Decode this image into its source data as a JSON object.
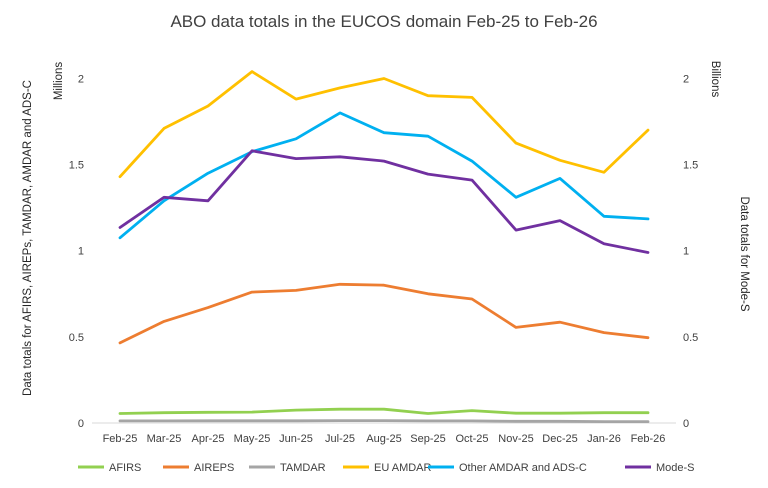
{
  "chart_data": {
    "type": "line",
    "title": "ABO data totals in the EUCOS domain Feb-25 to Feb-26",
    "categories": [
      "Feb-25",
      "Mar-25",
      "Apr-25",
      "May-25",
      "Jun-25",
      "Jul-25",
      "Aug-25",
      "Sep-25",
      "Oct-25",
      "Nov-25",
      "Dec-25",
      "Jan-26",
      "Feb-26"
    ],
    "y_left": {
      "label": "Data totals for AFIRS, AIREPs, TAMDAR, AMDAR and ADS-C",
      "unit": "Millions",
      "range": [
        0,
        2.2
      ],
      "ticks": [
        0,
        0.5,
        1,
        1.5,
        2
      ],
      "tick_labels": [
        "0",
        "0.5",
        "1",
        "1.5",
        "2"
      ]
    },
    "y_right": {
      "label": "Data totals for Mode-S",
      "unit": "Billions",
      "range": [
        0,
        2.2
      ],
      "ticks": [
        0,
        0.5,
        1,
        1.5,
        2
      ],
      "tick_labels": [
        "0",
        "0.5",
        "1",
        "1.5",
        "2"
      ]
    },
    "grid": false,
    "legend_position": "bottom",
    "series": [
      {
        "name": "AFIRS",
        "axis": "left",
        "color": "#92d050",
        "values": [
          0.055,
          0.06,
          0.062,
          0.063,
          0.075,
          0.08,
          0.08,
          0.055,
          0.072,
          0.057,
          0.057,
          0.06,
          0.06
        ]
      },
      {
        "name": "AIREPS",
        "axis": "left",
        "color": "#ed7d31",
        "values": [
          0.465,
          0.59,
          0.67,
          0.76,
          0.77,
          0.805,
          0.8,
          0.75,
          0.72,
          0.555,
          0.585,
          0.525,
          0.495
        ]
      },
      {
        "name": "TAMDAR",
        "axis": "left",
        "color": "#a5a5a5",
        "values": [
          0.012,
          0.012,
          0.013,
          0.013,
          0.013,
          0.014,
          0.014,
          0.012,
          0.012,
          0.01,
          0.01,
          0.008,
          0.008
        ]
      },
      {
        "name": "EU AMDAR",
        "axis": "left",
        "color": "#ffc000",
        "values": [
          1.43,
          1.71,
          1.84,
          2.04,
          1.88,
          1.945,
          2.0,
          1.9,
          1.89,
          1.625,
          1.525,
          1.455,
          1.7
        ]
      },
      {
        "name": "Other AMDAR and ADS-C",
        "axis": "left",
        "color": "#00b0f0",
        "values": [
          1.075,
          1.29,
          1.45,
          1.575,
          1.65,
          1.8,
          1.685,
          1.665,
          1.52,
          1.31,
          1.42,
          1.2,
          1.185
        ]
      },
      {
        "name": "Mode-S",
        "axis": "right",
        "color": "#7030a0",
        "values": [
          1.135,
          1.31,
          1.29,
          1.58,
          1.535,
          1.545,
          1.52,
          1.445,
          1.41,
          1.12,
          1.175,
          1.04,
          0.99
        ]
      }
    ]
  }
}
